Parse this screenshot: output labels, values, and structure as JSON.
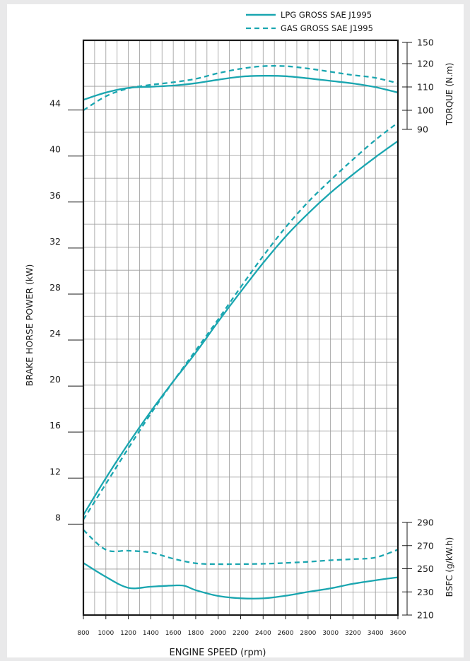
{
  "colors": {
    "series": "#1aa6b0",
    "grid": "#9a9a9a",
    "frame": "#1a1a1a",
    "paper": "#ffffff",
    "background": "#e9e9ea"
  },
  "legend": {
    "solid_label": "LPG GROSS  SAE J1995",
    "dashed_label": "GAS GROSS  SAE J1995",
    "placement": "top-right"
  },
  "chart_data": {
    "type": "line",
    "grid": true,
    "x": {
      "label": "ENGINE  SPEED  (rpm)",
      "range": [
        800,
        3600
      ],
      "ticks": [
        800,
        1000,
        1200,
        1400,
        1600,
        1800,
        2000,
        2200,
        2400,
        2600,
        2800,
        3000,
        3200,
        3400,
        3600
      ]
    },
    "y_power": {
      "label": "BRAKE HORSE POWER (kW)",
      "range": [
        0,
        48
      ],
      "ticks": [
        8,
        12,
        16,
        20,
        24,
        28,
        32,
        36,
        40,
        44
      ]
    },
    "y_torque": {
      "label": "TORQUE (N.m)",
      "ticks": [
        90,
        100,
        110,
        120,
        150
      ]
    },
    "y_bsfc": {
      "label": "BSFC (g/kW.h)",
      "range": [
        210,
        290
      ],
      "ticks": [
        210,
        230,
        250,
        270,
        290
      ]
    },
    "series": [
      {
        "name": "LPG GROSS  SAE J1995",
        "quantity": "power",
        "style": "solid",
        "x": [
          800,
          1000,
          1200,
          1400,
          1600,
          1800,
          2000,
          2200,
          2400,
          2600,
          2800,
          3000,
          3200,
          3400,
          3600
        ],
        "y": [
          8.8,
          12.0,
          15.0,
          17.8,
          20.4,
          22.9,
          25.6,
          28.2,
          30.7,
          33.0,
          35.0,
          36.8,
          38.4,
          39.9,
          41.3
        ]
      },
      {
        "name": "GAS GROSS  SAE J1995",
        "quantity": "power",
        "style": "dashed",
        "x": [
          800,
          1000,
          1200,
          1400,
          1600,
          1800,
          2000,
          2200,
          2400,
          2600,
          2800,
          3000,
          3200,
          3400,
          3600
        ],
        "y": [
          8.4,
          11.5,
          14.6,
          17.6,
          20.4,
          23.1,
          25.8,
          28.6,
          31.3,
          33.8,
          36.0,
          37.9,
          39.7,
          41.4,
          42.9
        ]
      },
      {
        "name": "LPG GROSS  SAE J1995",
        "quantity": "torque",
        "style": "solid",
        "x": [
          800,
          1000,
          1200,
          1400,
          1600,
          1800,
          2000,
          2200,
          2400,
          2600,
          2800,
          3000,
          3200,
          3400,
          3600
        ],
        "y": [
          104.5,
          107.6,
          109.6,
          110.1,
          110.6,
          111.6,
          113.1,
          114.4,
          114.8,
          114.6,
          113.7,
          112.6,
          111.5,
          109.9,
          107.6
        ]
      },
      {
        "name": "GAS GROSS  SAE J1995",
        "quantity": "torque",
        "style": "dashed",
        "x": [
          800,
          1000,
          1200,
          1400,
          1600,
          1800,
          2000,
          2200,
          2400,
          2600,
          2800,
          3000,
          3200,
          3400,
          3600
        ],
        "y": [
          100.0,
          106.0,
          109.4,
          110.9,
          112.0,
          113.5,
          115.9,
          117.8,
          118.9,
          118.9,
          117.9,
          116.5,
          115.1,
          113.9,
          111.6
        ]
      },
      {
        "name": "LPG GROSS  SAE J1995",
        "quantity": "bsfc",
        "style": "solid",
        "x": [
          800,
          1000,
          1200,
          1400,
          1600,
          1700,
          1800,
          2000,
          2200,
          2400,
          2600,
          2800,
          3000,
          3200,
          3400,
          3600
        ],
        "y": [
          255.0,
          243.0,
          233.5,
          234.5,
          235.5,
          235.3,
          231.5,
          226.5,
          224.5,
          224.4,
          226.7,
          230.0,
          233.0,
          237.0,
          240.0,
          242.6
        ]
      },
      {
        "name": "GAS GROSS  SAE J1995",
        "quantity": "bsfc",
        "style": "dashed",
        "x": [
          800,
          1000,
          1200,
          1400,
          1600,
          1800,
          2000,
          2200,
          2400,
          2600,
          2800,
          3000,
          3200,
          3400,
          3600
        ],
        "y": [
          283.5,
          266.4,
          265.6,
          264.0,
          258.7,
          254.7,
          254.0,
          254.0,
          254.3,
          255.0,
          256.0,
          257.3,
          258.3,
          259.7,
          266.5
        ]
      }
    ]
  }
}
